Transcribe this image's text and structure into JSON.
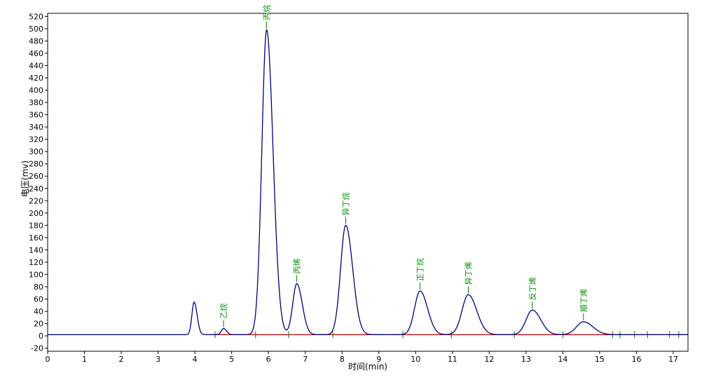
{
  "chart_data": {
    "type": "line",
    "xlabel": "时间(min)",
    "ylabel": "电压(mv)",
    "xlim": [
      0,
      17.4
    ],
    "ylim": [
      -25,
      525
    ],
    "x_ticks": [
      0,
      1,
      2,
      3,
      4,
      5,
      6,
      7,
      8,
      9,
      10,
      11,
      12,
      13,
      14,
      15,
      16,
      17
    ],
    "y_ticks": [
      -20,
      0,
      20,
      40,
      60,
      80,
      100,
      120,
      140,
      160,
      180,
      200,
      220,
      240,
      260,
      280,
      300,
      320,
      340,
      360,
      380,
      400,
      420,
      440,
      460,
      480,
      500,
      520
    ],
    "grid": false,
    "baseline_value": 2,
    "colors": {
      "signal": "#00007a",
      "baseline": "#c80000",
      "labels": "#009000",
      "markers": "#007a00"
    },
    "peaks": [
      {
        "name": "",
        "x": 3.98,
        "y": 55,
        "sigma": 0.06
      },
      {
        "name": "乙烷",
        "x": 4.78,
        "y": 12,
        "sigma": 0.06
      },
      {
        "name": "丙烷",
        "x": 5.95,
        "y": 498,
        "sigma": 0.13
      },
      {
        "name": "丙烯",
        "x": 6.77,
        "y": 85,
        "sigma": 0.11
      },
      {
        "name": "异丁烷",
        "x": 8.1,
        "y": 180,
        "sigma": 0.14
      },
      {
        "name": "正丁烷",
        "x": 10.12,
        "y": 73,
        "sigma": 0.15
      },
      {
        "name": "异丁烯",
        "x": 11.43,
        "y": 67,
        "sigma": 0.17
      },
      {
        "name": "反丁烯",
        "x": 13.17,
        "y": 42,
        "sigma": 0.17
      },
      {
        "name": "顺丁烯",
        "x": 14.56,
        "y": 23,
        "sigma": 0.19
      }
    ],
    "event_markers_x": [
      4.55,
      5.65,
      6.55,
      7.75,
      9.65,
      10.97,
      12.68,
      14.0,
      15.35,
      15.55,
      15.95,
      16.3,
      16.9,
      17.15
    ]
  }
}
